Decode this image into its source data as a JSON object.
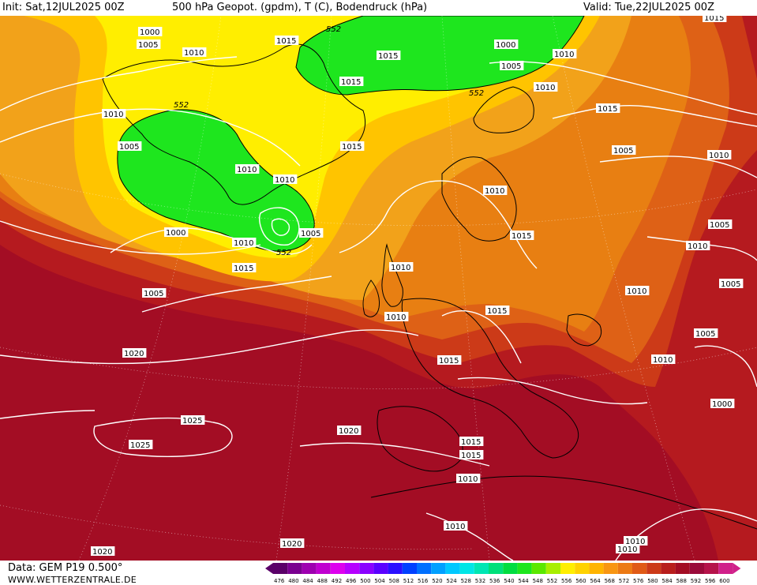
{
  "header": {
    "init": "Init: Sat,12JUL2025 00Z",
    "title": "500 hPa Geopot. (gpdm), T (C), Bodendruck (hPa)",
    "valid": "Valid: Tue,22JUL2025 00Z"
  },
  "footer": {
    "source": "Data: GEM P19 0.500°",
    "site": "WWW.WETTERZENTRALE.DE"
  },
  "colors": {
    "green": "#1ee61e",
    "yellow": "#ffee00",
    "gold": "#ffc400",
    "orange_light": "#f2a21a",
    "orange": "#e87f12",
    "orange_dark": "#de6116",
    "red_orange": "#cc3a18",
    "red": "#b51a1f",
    "crimson": "#a30d24",
    "magenta_red": "#b5134a"
  },
  "legend": {
    "values": [
      "476",
      "480",
      "484",
      "488",
      "492",
      "496",
      "500",
      "504",
      "508",
      "512",
      "516",
      "520",
      "524",
      "528",
      "532",
      "536",
      "540",
      "544",
      "548",
      "552",
      "556",
      "560",
      "564",
      "568",
      "572",
      "576",
      "580",
      "584",
      "588",
      "592",
      "596",
      "600"
    ],
    "colors": [
      "#5a0068",
      "#7a0090",
      "#9e00b0",
      "#c000d0",
      "#dd00ee",
      "#b600ff",
      "#8a00ff",
      "#5a00ff",
      "#2a10ff",
      "#0040ff",
      "#0070ff",
      "#00a0ff",
      "#00c8ff",
      "#00e6e6",
      "#00e6b4",
      "#00e07a",
      "#00dd40",
      "#1ee61e",
      "#5be800",
      "#a8ee00",
      "#ffee00",
      "#ffd200",
      "#ffb400",
      "#f89612",
      "#ec7a14",
      "#e05a16",
      "#cc3a18",
      "#b81e1c",
      "#a30d24",
      "#9a0a3a",
      "#b5134a",
      "#d0208a"
    ]
  },
  "map": {
    "geopot_labels": [
      "552",
      "552",
      "552",
      "552"
    ],
    "isobar_labels": [
      "1000",
      "1005",
      "1010",
      "1010",
      "1015",
      "1000",
      "1005",
      "1010",
      "1015",
      "1010",
      "1015",
      "1015",
      "1010",
      "1005",
      "1010",
      "1005",
      "1000",
      "1010",
      "1015",
      "1005",
      "1020",
      "1025",
      "1025",
      "1020",
      "1015",
      "1010",
      "1015",
      "1010",
      "1020",
      "1015",
      "1015",
      "1015",
      "1010",
      "1015",
      "1005",
      "1010",
      "1005",
      "1010",
      "1010",
      "1010",
      "1015",
      "1010",
      "1005",
      "1010",
      "1005",
      "1020",
      "1010",
      "1010",
      "1000"
    ]
  }
}
